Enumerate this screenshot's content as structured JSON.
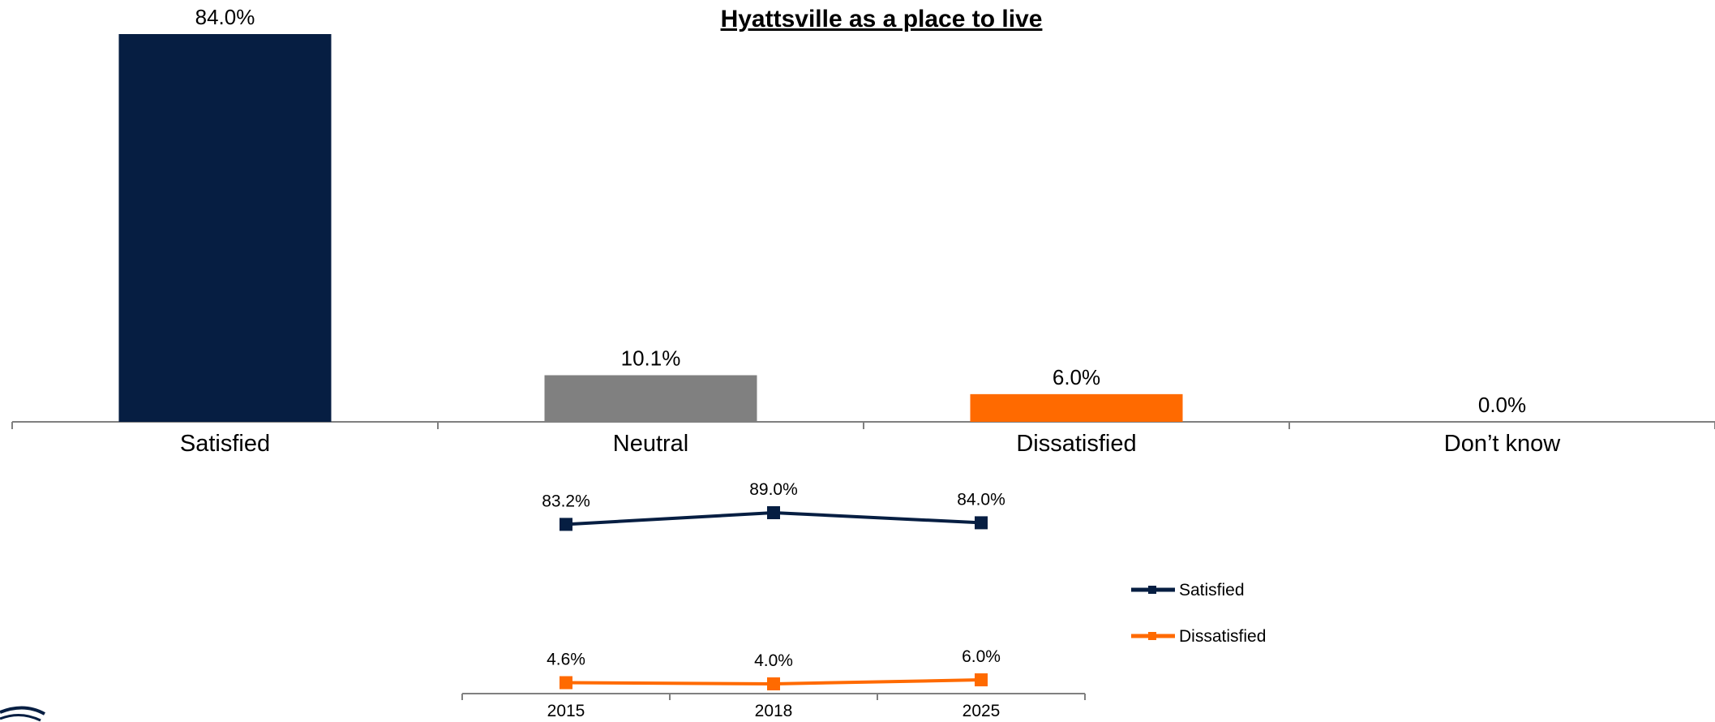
{
  "chart_data": [
    {
      "type": "bar",
      "title": "Hyattsville as a place to live",
      "categories": [
        "Satisfied",
        "Neutral",
        "Dissatisfied",
        "Don’t know"
      ],
      "values": [
        84.0,
        10.1,
        6.0,
        0.0
      ],
      "value_labels": [
        "84.0%",
        "10.1%",
        "6.0%",
        "0.0%"
      ],
      "colors": [
        "#061e42",
        "#808080",
        "#ff6a00",
        "#808080"
      ],
      "ylim": [
        0,
        84.0
      ],
      "grid": false,
      "legend": "none"
    },
    {
      "type": "line",
      "x": [
        "2015",
        "2018",
        "2025"
      ],
      "series": [
        {
          "name": "Satisfied",
          "values": [
            83.2,
            89.0,
            84.0
          ],
          "labels": [
            "83.2%",
            "89.0%",
            "84.0%"
          ],
          "color": "#061e42"
        },
        {
          "name": "Dissatisfied",
          "values": [
            4.6,
            4.0,
            6.0
          ],
          "labels": [
            "4.6%",
            "4.0%",
            "6.0%"
          ],
          "color": "#ff6a00"
        }
      ],
      "grid": false,
      "legend": "right"
    }
  ]
}
